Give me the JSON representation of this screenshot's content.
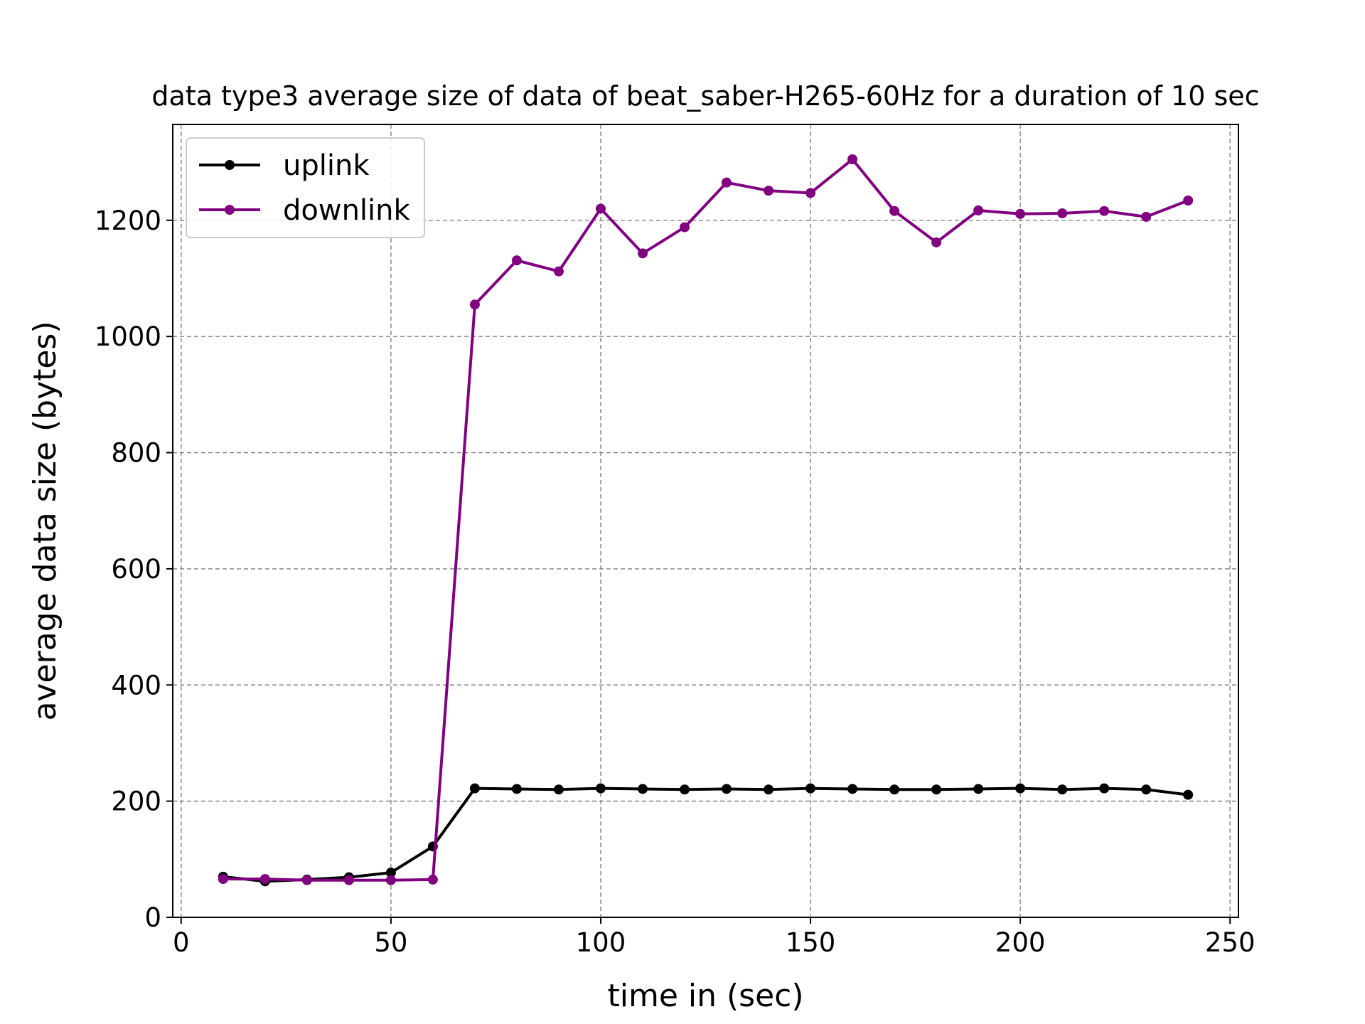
{
  "chart_data": {
    "type": "line",
    "title": "data type3 average size of data of beat_saber-H265-60Hz for a duration of 10 sec",
    "xlabel": "time in (sec)",
    "ylabel": "average data size (bytes)",
    "xlim": [
      -2,
      252
    ],
    "ylim": [
      0,
      1365
    ],
    "xticks": [
      0,
      50,
      100,
      150,
      200,
      250
    ],
    "yticks": [
      0,
      200,
      400,
      600,
      800,
      1000,
      1200
    ],
    "grid": true,
    "legend_position": "top-left",
    "x": [
      10,
      20,
      30,
      40,
      50,
      60,
      70,
      80,
      90,
      100,
      110,
      120,
      130,
      140,
      150,
      160,
      170,
      180,
      190,
      200,
      210,
      220,
      230,
      240
    ],
    "series": [
      {
        "name": "uplink",
        "color": "#000000",
        "values": [
          70,
          62,
          65,
          69,
          77,
          122,
          222,
          221,
          220,
          222,
          221,
          220,
          221,
          220,
          222,
          221,
          220,
          220,
          221,
          222,
          220,
          222,
          220,
          211
        ]
      },
      {
        "name": "downlink",
        "color": "#800080",
        "values": [
          66,
          66,
          64,
          64,
          64,
          65,
          1055,
          1131,
          1112,
          1220,
          1143,
          1188,
          1265,
          1251,
          1247,
          1305,
          1216,
          1162,
          1217,
          1211,
          1212,
          1216,
          1206,
          1234
        ]
      }
    ]
  }
}
